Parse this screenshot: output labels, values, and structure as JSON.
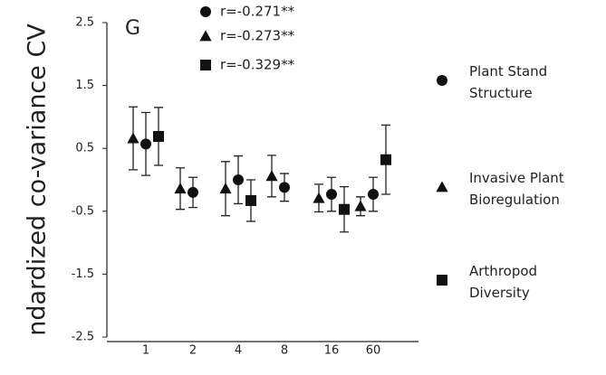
{
  "chart_data": {
    "type": "errorbar-scatter",
    "panel": "G",
    "y_label": "ndardized co-variance CV",
    "categories": [
      "1",
      "2",
      "4",
      "8",
      "16",
      "60"
    ],
    "ylim": [
      -2.5,
      2.5
    ],
    "yticks": [
      -2.5,
      -1.5,
      -0.5,
      0.5,
      1.5,
      2.5
    ],
    "series": [
      {
        "name": "Plant Stand Structure",
        "marker": "circle",
        "color": "#111111",
        "annotation": "r=-0.271**",
        "values": [
          0.57,
          -0.2,
          0.0,
          -0.12,
          -0.23,
          -0.23
        ],
        "errors": [
          0.5,
          0.24,
          0.38,
          0.22,
          0.27,
          0.27
        ]
      },
      {
        "name": "Invasive Plant Bioregulation",
        "marker": "triangle",
        "color": "#111111",
        "annotation": "r=-0.273**",
        "values": [
          0.66,
          -0.14,
          -0.14,
          0.06,
          -0.29,
          -0.42
        ],
        "errors": [
          0.5,
          0.33,
          0.43,
          0.33,
          0.22,
          0.15
        ]
      },
      {
        "name": "Arthropod Diversity",
        "marker": "square",
        "color": "#111111",
        "annotation": "r=-0.329**",
        "values": [
          0.69,
          null,
          -0.33,
          null,
          -0.47,
          0.32
        ],
        "errors": [
          0.46,
          null,
          0.33,
          null,
          0.36,
          0.55
        ]
      }
    ]
  }
}
